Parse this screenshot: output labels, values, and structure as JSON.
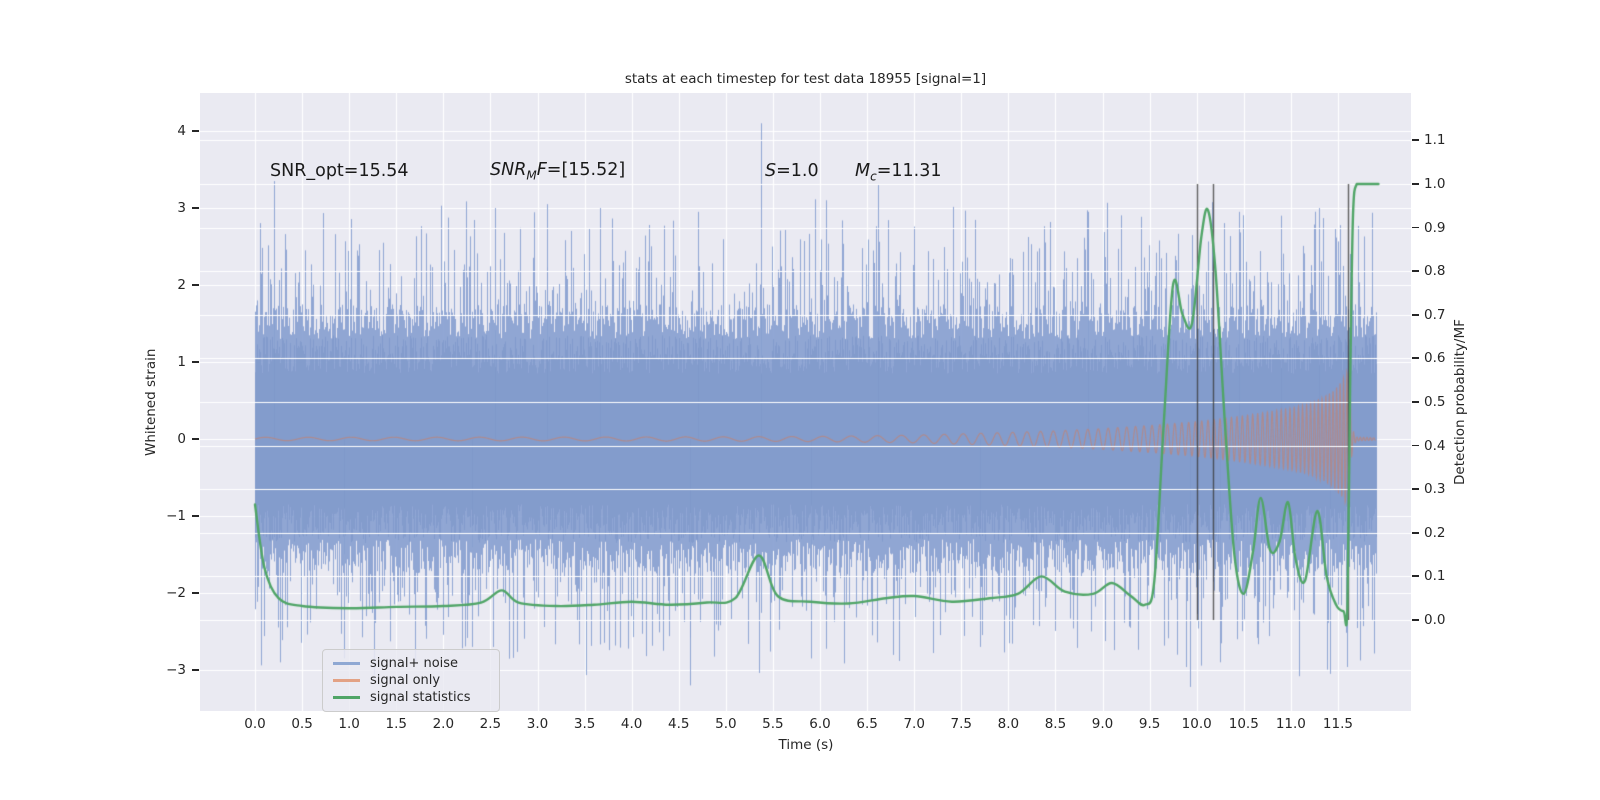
{
  "figure": {
    "title": "stats at each timestep for test data 18955 [signal=1]"
  },
  "annotations": {
    "snr_opt": "SNR_opt=15.54",
    "snr_mf": {
      "pre": "SNR",
      "sub": "M",
      "mid": "F",
      "post": "=[15.52]"
    },
    "s": {
      "pre": "S",
      "post": "=1.0"
    },
    "mc": {
      "pre": "M",
      "sub": "c",
      "post": "=11.31"
    }
  },
  "axes": {
    "x": {
      "label": "Time (s)",
      "tick_values": [
        0,
        0.5,
        1,
        1.5,
        2,
        2.5,
        3,
        3.5,
        4,
        4.5,
        5,
        5.5,
        6,
        6.5,
        7,
        7.5,
        8,
        8.5,
        9,
        9.5,
        10,
        10.5,
        11,
        11.5
      ],
      "tick_labels": [
        "0.0",
        "0.5",
        "1.0",
        "1.5",
        "2.0",
        "2.5",
        "3.0",
        "3.5",
        "4.0",
        "4.5",
        "5.0",
        "5.5",
        "6.0",
        "6.5",
        "7.0",
        "7.5",
        "8.0",
        "8.5",
        "9.0",
        "9.5",
        "10.0",
        "10.5",
        "11.0",
        "11.5"
      ]
    },
    "y_left": {
      "label": "Whitened strain",
      "tick_values": [
        4,
        3,
        2,
        1,
        0,
        -1,
        -2,
        -3
      ],
      "tick_labels": [
        "4",
        "3",
        "2",
        "1",
        "0",
        "−1",
        "−2",
        "−3"
      ]
    },
    "y_right": {
      "label": "Detection probability/MF",
      "tick_values": [
        1.1,
        1.0,
        0.9,
        0.8,
        0.7,
        0.6,
        0.5,
        0.4,
        0.3,
        0.2,
        0.1,
        0.0
      ],
      "tick_labels": [
        "1.1",
        "1.0",
        "0.9",
        "0.8",
        "0.7",
        "0.6",
        "0.5",
        "0.4",
        "0.3",
        "0.2",
        "0.1",
        "0.0"
      ]
    }
  },
  "legend": {
    "items": [
      {
        "label": "signal+ noise",
        "color": "#8fa8d3"
      },
      {
        "label": "signal only",
        "color": "#e3a285"
      },
      {
        "label": "signal statistics",
        "color": "#50a567"
      }
    ]
  },
  "colors": {
    "figure_bg": "#ffffff",
    "plot_bg": "#eaeaf2",
    "grid": "#ffffff",
    "text": "#262626"
  },
  "chart_data": {
    "type": "line",
    "title": "stats at each timestep for test data 18955 [signal=1]",
    "xlabel": "Time (s)",
    "ylabel_left": "Whitened strain",
    "ylabel_right": "Detection probability/MF",
    "axis_ranges": {
      "x": [
        -0.584,
        12.276
      ],
      "y_left": [
        -3.53,
        4.49
      ],
      "y_right": [
        -0.209,
        1.209
      ]
    },
    "grid": true,
    "legend_position": "lower left",
    "series": [
      {
        "name": "signal+ noise",
        "axis": "left",
        "style": "noise-band",
        "color": "rgba(136,160,208,0.92)",
        "core_color": "rgba(122,148,199,0.6)",
        "t_start": 0,
        "t_end": 11.9,
        "band_base": 1.3,
        "band_jitter": 0.45,
        "spike_prob": 0.3,
        "spike_scale": 1.1,
        "peaks": [
          [
            0.2,
            3.35
          ],
          [
            2.55,
            3.0
          ],
          [
            3.1,
            3.05
          ],
          [
            3.66,
            3.0
          ],
          [
            4.7,
            2.95
          ],
          [
            5.37,
            4.1
          ],
          [
            6.62,
            3.3
          ],
          [
            8.85,
            2.95
          ],
          [
            10.45,
            2.95
          ],
          [
            10.9,
            2.9
          ],
          [
            11.3,
            3.0
          ]
        ],
        "dips": [
          [
            0.95,
            -2.85
          ],
          [
            2.3,
            -2.7
          ],
          [
            4.62,
            -3.2
          ],
          [
            5.9,
            -2.85
          ],
          [
            7.7,
            -2.7
          ],
          [
            9.93,
            -3.22
          ],
          [
            10.25,
            -2.9
          ],
          [
            11.42,
            -3.05
          ]
        ]
      },
      {
        "name": "signal only",
        "axis": "left",
        "style": "chirp",
        "color": "rgba(201,126,101,0.6)",
        "t_start": 0,
        "t_end": 11.9,
        "merger_time": 11.62,
        "freq_base_hz": 2.2,
        "freq_max_add_hz": 26,
        "freq_power": 5,
        "envelope": [
          [
            0,
            0.022
          ],
          [
            3,
            0.024
          ],
          [
            5,
            0.028
          ],
          [
            6,
            0.034
          ],
          [
            7,
            0.05
          ],
          [
            8,
            0.085
          ],
          [
            8.5,
            0.105
          ],
          [
            9,
            0.135
          ],
          [
            9.5,
            0.175
          ],
          [
            10,
            0.225
          ],
          [
            10.5,
            0.3
          ],
          [
            11,
            0.4
          ],
          [
            11.2,
            0.46
          ],
          [
            11.35,
            0.54
          ],
          [
            11.45,
            0.62
          ],
          [
            11.55,
            0.76
          ],
          [
            11.6,
            0.87
          ],
          [
            11.62,
            0.93
          ],
          [
            11.635,
            0.45
          ],
          [
            11.65,
            0.18
          ],
          [
            11.67,
            0.07
          ],
          [
            11.7,
            0.025
          ],
          [
            11.9,
            0.015
          ]
        ]
      },
      {
        "name": "signal statistics",
        "axis": "right",
        "style": "smooth-line",
        "color": "#50a567",
        "line_width": 2.4,
        "points": [
          [
            0,
            0.265
          ],
          [
            0.1,
            0.12
          ],
          [
            0.25,
            0.05
          ],
          [
            0.5,
            0.032
          ],
          [
            1,
            0.027
          ],
          [
            1.5,
            0.03
          ],
          [
            2,
            0.032
          ],
          [
            2.4,
            0.04
          ],
          [
            2.62,
            0.068
          ],
          [
            2.8,
            0.04
          ],
          [
            3.2,
            0.032
          ],
          [
            3.6,
            0.035
          ],
          [
            4,
            0.042
          ],
          [
            4.4,
            0.035
          ],
          [
            4.8,
            0.04
          ],
          [
            5.1,
            0.05
          ],
          [
            5.35,
            0.148
          ],
          [
            5.55,
            0.055
          ],
          [
            5.9,
            0.042
          ],
          [
            6.3,
            0.038
          ],
          [
            6.7,
            0.05
          ],
          [
            7,
            0.055
          ],
          [
            7.4,
            0.042
          ],
          [
            7.8,
            0.05
          ],
          [
            8.1,
            0.06
          ],
          [
            8.35,
            0.1
          ],
          [
            8.6,
            0.065
          ],
          [
            8.9,
            0.06
          ],
          [
            9.1,
            0.085
          ],
          [
            9.3,
            0.055
          ],
          [
            9.45,
            0.035
          ],
          [
            9.55,
            0.09
          ],
          [
            9.65,
            0.45
          ],
          [
            9.75,
            0.77
          ],
          [
            9.85,
            0.7
          ],
          [
            9.95,
            0.68
          ],
          [
            10.05,
            0.88
          ],
          [
            10.12,
            0.94
          ],
          [
            10.2,
            0.8
          ],
          [
            10.3,
            0.45
          ],
          [
            10.4,
            0.15
          ],
          [
            10.5,
            0.06
          ],
          [
            10.6,
            0.16
          ],
          [
            10.68,
            0.28
          ],
          [
            10.78,
            0.16
          ],
          [
            10.88,
            0.18
          ],
          [
            10.97,
            0.27
          ],
          [
            11.05,
            0.14
          ],
          [
            11.15,
            0.09
          ],
          [
            11.28,
            0.25
          ],
          [
            11.38,
            0.1
          ],
          [
            11.48,
            0.035
          ],
          [
            11.56,
            0.02
          ],
          [
            11.6,
            0.03
          ],
          [
            11.63,
            0.55
          ],
          [
            11.66,
            0.93
          ],
          [
            11.7,
            1.0
          ],
          [
            11.78,
            1.0
          ],
          [
            11.93,
            1.0
          ]
        ]
      }
    ],
    "vlines": {
      "times": [
        10.0,
        10.17,
        11.61
      ],
      "color": "rgba(60,60,60,0.8)",
      "y_right_span": [
        0,
        1
      ]
    }
  }
}
